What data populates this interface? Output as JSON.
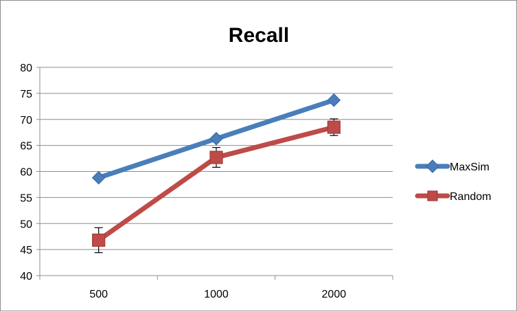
{
  "chart_data": {
    "type": "line",
    "title": "Recall",
    "xlabel": "",
    "ylabel": "",
    "categories": [
      "500",
      "1000",
      "2000"
    ],
    "ylim": [
      40,
      80
    ],
    "yticks": [
      40,
      45,
      50,
      55,
      60,
      65,
      70,
      75,
      80
    ],
    "grid": "horizontal",
    "legend_position": "right",
    "series": [
      {
        "name": "MaxSim",
        "values": [
          58.8,
          66.3,
          73.7
        ],
        "color": "#4a7ebb",
        "marker": "diamond",
        "error": [
          0,
          0,
          0
        ]
      },
      {
        "name": "Random",
        "values": [
          46.8,
          62.7,
          68.5
        ],
        "color": "#be4b48",
        "marker": "square",
        "error": [
          2.4,
          1.9,
          1.6
        ]
      }
    ]
  }
}
